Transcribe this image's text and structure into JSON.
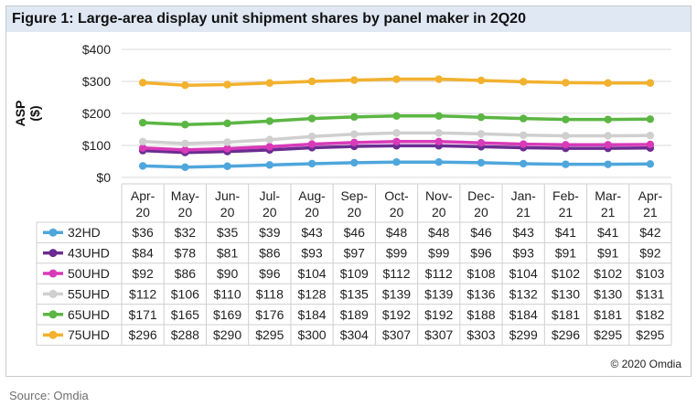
{
  "title": "Figure 1: Large-area display unit shipment shares by panel maker in 2Q20",
  "copyright": "© 2020 Omdia",
  "source": "Source: Omdia",
  "chart_data": {
    "type": "line",
    "ylabel": "ASP ($)",
    "ylim": [
      0,
      400
    ],
    "yticks": [
      "$0",
      "$100",
      "$200",
      "$300",
      "$400"
    ],
    "categories": [
      [
        "Apr-",
        "20"
      ],
      [
        "May-",
        "20"
      ],
      [
        "Jun-",
        "20"
      ],
      [
        "Jul-",
        "20"
      ],
      [
        "Aug-",
        "20"
      ],
      [
        "Sep-",
        "20"
      ],
      [
        "Oct-",
        "20"
      ],
      [
        "Nov-",
        "20"
      ],
      [
        "Dec-",
        "20"
      ],
      [
        "Jan-",
        "21"
      ],
      [
        "Feb-",
        "21"
      ],
      [
        "Mar-",
        "21"
      ],
      [
        "Apr-",
        "21"
      ]
    ],
    "grid": true,
    "legend": "data-table",
    "series": [
      {
        "name": "32HD",
        "color": "#4ea6dc",
        "values": [
          36,
          32,
          35,
          39,
          43,
          46,
          48,
          48,
          46,
          43,
          41,
          41,
          42
        ]
      },
      {
        "name": "43UHD",
        "color": "#6b2c91",
        "values": [
          84,
          78,
          81,
          86,
          93,
          97,
          99,
          99,
          96,
          93,
          91,
          91,
          92
        ]
      },
      {
        "name": "50UHD",
        "color": "#d83ab8",
        "values": [
          92,
          86,
          90,
          96,
          104,
          109,
          112,
          112,
          108,
          104,
          102,
          102,
          103
        ]
      },
      {
        "name": "55UHD",
        "color": "#cfcfcf",
        "values": [
          112,
          106,
          110,
          118,
          128,
          135,
          139,
          139,
          136,
          132,
          130,
          130,
          131
        ]
      },
      {
        "name": "65UHD",
        "color": "#5bb643",
        "values": [
          171,
          165,
          169,
          176,
          184,
          189,
          192,
          192,
          188,
          184,
          181,
          181,
          182
        ]
      },
      {
        "name": "75UHD",
        "color": "#f2b12e",
        "values": [
          296,
          288,
          290,
          295,
          300,
          304,
          307,
          307,
          303,
          299,
          296,
          295,
          295
        ]
      }
    ]
  }
}
